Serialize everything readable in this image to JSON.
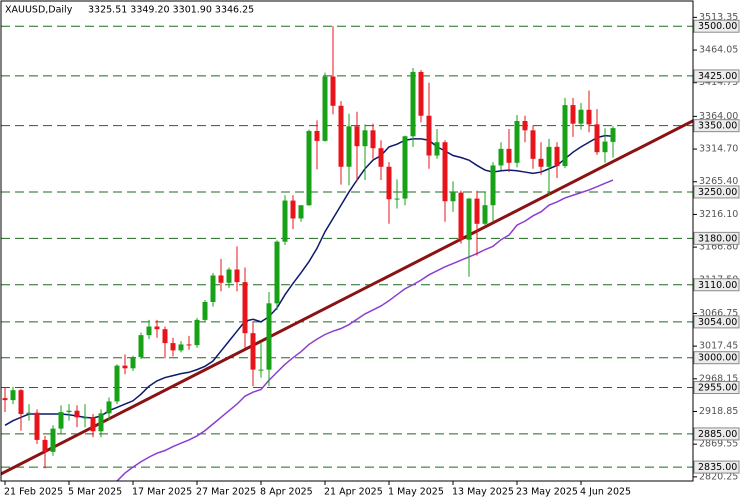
{
  "chart_data": {
    "type": "candlestick",
    "title": "XAUUSD,Daily",
    "subtitle": "3325.51 3349.20 3301.90 3346.25",
    "up_color": "#17a117",
    "down_color": "#e8141b",
    "categories": [
      "21 Feb 2025",
      null,
      null,
      null,
      null,
      null,
      null,
      null,
      "5 Mar 2025",
      null,
      null,
      null,
      null,
      null,
      null,
      null,
      "17 Mar 2025",
      null,
      null,
      null,
      null,
      null,
      null,
      null,
      "27 Mar 2025",
      null,
      null,
      null,
      null,
      null,
      null,
      null,
      "8 Apr 2025",
      null,
      null,
      null,
      null,
      null,
      null,
      null,
      "21 Apr 2025",
      null,
      null,
      null,
      null,
      null,
      null,
      null,
      "1 May 2025",
      null,
      null,
      null,
      null,
      null,
      null,
      null,
      "13 May 2025",
      null,
      null,
      null,
      null,
      null,
      null,
      null,
      "23 May 2025",
      null,
      null,
      null,
      null,
      null,
      null,
      null,
      "4 Jun 2025",
      null,
      null,
      null,
      null
    ],
    "open": [
      2939,
      2936,
      2951,
      2915,
      2917,
      2876,
      2858,
      2893,
      2918,
      2920,
      2910,
      2910,
      2889,
      2916,
      2934,
      2988,
      2984,
      3001,
      3034,
      3047,
      3043,
      3022,
      3011,
      3020,
      3019,
      3057,
      3084,
      3124,
      3113,
      3133,
      3114,
      3037,
      2982,
      2982,
      3082,
      3175,
      3237,
      3210,
      3230,
      3342,
      3327,
      3424,
      3380,
      3288,
      3349,
      3319,
      3343,
      3316,
      3288,
      3239,
      3240,
      3334,
      3431,
      3365,
      3305,
      3325,
      3236,
      3249,
      3178,
      3240,
      3202,
      3230,
      3290,
      3315,
      3294,
      3357,
      3343,
      3300,
      3288,
      3318,
      3289,
      3381,
      3353,
      3374,
      3352,
      3310,
      3325.51
    ],
    "high": [
      2955,
      2956,
      2953,
      2930,
      2922,
      2882,
      2898,
      2928,
      2930,
      2928,
      2930,
      2915,
      2922,
      2940,
      2990,
      3005,
      3003,
      3038,
      3057,
      3057,
      3047,
      3030,
      3025,
      3033,
      3060,
      3087,
      3128,
      3149,
      3136,
      3168,
      3136,
      3055,
      3023,
      3099,
      3177,
      3245,
      3245,
      3230,
      3344,
      3358,
      3430,
      3500,
      3387,
      3368,
      3371,
      3352,
      3353,
      3328,
      3295,
      3269,
      3335,
      3437,
      3434,
      3415,
      3345,
      3328,
      3266,
      3252,
      3241,
      3252,
      3250,
      3295,
      3325,
      3345,
      3366,
      3365,
      3350,
      3325,
      3330,
      3325,
      3392,
      3392,
      3384,
      3403,
      3375,
      3346,
      3349.2
    ],
    "low": [
      2918,
      2930,
      2890,
      2905,
      2870,
      2833,
      2852,
      2885,
      2905,
      2895,
      2895,
      2880,
      2880,
      2905,
      2930,
      2975,
      2980,
      2998,
      3028,
      3030,
      2999,
      3002,
      3008,
      3012,
      3015,
      3055,
      3077,
      3100,
      3105,
      3100,
      3015,
      2957,
      2970,
      2957,
      3072,
      3170,
      3194,
      3205,
      3229,
      3284,
      3326,
      3367,
      3261,
      3260,
      3266,
      3268,
      3300,
      3268,
      3202,
      3225,
      3230,
      3318,
      3355,
      3285,
      3300,
      3205,
      3220,
      3172,
      3122,
      3154,
      3200,
      3205,
      3283,
      3280,
      3287,
      3325,
      3285,
      3276,
      3245,
      3271,
      3286,
      3333,
      3344,
      3340,
      3306,
      3294,
      3301.9
    ],
    "close": [
      2936,
      2951,
      2915,
      2917,
      2876,
      2858,
      2893,
      2918,
      2920,
      2910,
      2910,
      2889,
      2916,
      2934,
      2988,
      2984,
      3001,
      3034,
      3047,
      3043,
      3022,
      3011,
      3020,
      3019,
      3057,
      3084,
      3124,
      3113,
      3133,
      3114,
      3037,
      2982,
      2982,
      3082,
      3175,
      3237,
      3210,
      3230,
      3342,
      3327,
      3424,
      3380,
      3288,
      3349,
      3319,
      3343,
      3316,
      3288,
      3239,
      3240,
      3334,
      3431,
      3365,
      3305,
      3325,
      3236,
      3249,
      3178,
      3240,
      3202,
      3230,
      3290,
      3315,
      3294,
      3357,
      3343,
      3300,
      3288,
      3318,
      3289,
      3381,
      3353,
      3374,
      3352,
      3310,
      3326,
      3346.25
    ],
    "moving_averages": [
      {
        "color": "#0b1a6e",
        "values": [
          2898,
          2905,
          2910,
          2915,
          2915,
          2915,
          2915,
          2915,
          2914,
          2912,
          2910,
          2909,
          2912,
          2920,
          2925,
          2930,
          2935,
          2945,
          2957,
          2965,
          2970,
          2973,
          2976,
          2978,
          2982,
          2987,
          2995,
          3010,
          3025,
          3040,
          3055,
          3058,
          3054,
          3062,
          3075,
          3095,
          3112,
          3128,
          3145,
          3165,
          3190,
          3210,
          3230,
          3250,
          3268,
          3285,
          3298,
          3305,
          3318,
          3322,
          3328,
          3330,
          3330,
          3328,
          3318,
          3312,
          3305,
          3302,
          3298,
          3290,
          3283,
          3280,
          3282,
          3283,
          3282,
          3280,
          3278,
          3280,
          3285,
          3290,
          3300,
          3310,
          3318,
          3325,
          3332,
          3335,
          3334
        ]
      },
      {
        "color": "#8a3fd1",
        "values": [
          null,
          null,
          null,
          null,
          null,
          null,
          null,
          null,
          null,
          null,
          null,
          null,
          null,
          null,
          2814,
          2826,
          2835,
          2843,
          2850,
          2856,
          2860,
          2866,
          2871,
          2876,
          2882,
          2890,
          2900,
          2910,
          2920,
          2930,
          2942,
          2948,
          2952,
          2966,
          2978,
          2990,
          3000,
          3009,
          3020,
          3028,
          3035,
          3040,
          3044,
          3050,
          3058,
          3066,
          3072,
          3078,
          3086,
          3095,
          3104,
          3110,
          3117,
          3125,
          3131,
          3137,
          3142,
          3147,
          3152,
          3157,
          3163,
          3168,
          3178,
          3185,
          3200,
          3206,
          3214,
          3220,
          3230,
          3235,
          3241,
          3245,
          3249,
          3253,
          3258,
          3263,
          3268
        ]
      }
    ],
    "ylim": [
      2814,
      3532
    ],
    "yticks": [
      3513.35,
      3464.05,
      3414.75,
      {
        "value": 3364,
        "label": "3364.00"
      },
      {
        "value": 3314.7,
        "label": "3314.70"
      },
      {
        "value": 3265.4,
        "label": "3265.40"
      },
      {
        "value": 3216.1,
        "label": "3216.10"
      },
      {
        "value": 3166.8,
        "label": "3166.80"
      },
      {
        "value": 3117.5,
        "label": "3117.50"
      },
      3066.75,
      3017.45,
      2968.15,
      2918.85,
      2869.55,
      2820.25
    ],
    "levels": [
      {
        "value": 3500,
        "label": "3500.00"
      },
      {
        "value": 3425,
        "label": "3425.00"
      },
      {
        "value": 3350,
        "label": "3350.00"
      },
      {
        "value": 3250,
        "label": "3250.00"
      },
      {
        "value": 3180,
        "label": "3180.00"
      },
      {
        "value": 3110,
        "label": "3110.00"
      },
      {
        "value": 3054,
        "label": "3054.00"
      },
      {
        "value": 3000,
        "label": "3000.00"
      },
      {
        "value": 2955,
        "label": "2955.00"
      },
      {
        "value": 2885,
        "label": "2885.00"
      },
      {
        "value": 2835,
        "label": "2835.00"
      }
    ],
    "level_color": "#1f6b1f"
  }
}
